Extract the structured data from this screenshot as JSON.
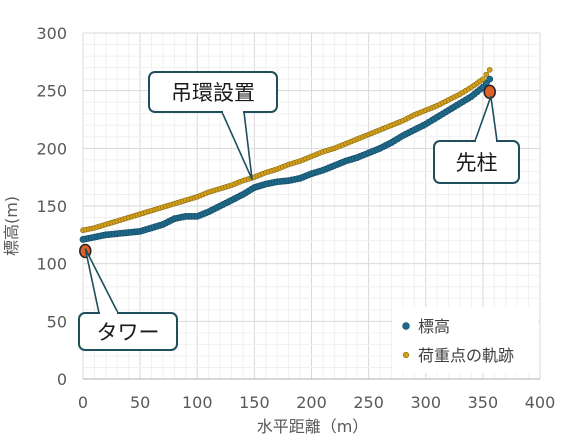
{
  "chart_data": {
    "type": "scatter",
    "xlabel": "水平距離（m）",
    "ylabel": "標高(m)",
    "xlim": [
      0,
      400
    ],
    "ylim": [
      0,
      300
    ],
    "x_ticks": [
      "0",
      "50",
      "100",
      "150",
      "200",
      "250",
      "300",
      "350",
      "400"
    ],
    "y_ticks": [
      "0",
      "50",
      "100",
      "150",
      "200",
      "250",
      "300"
    ],
    "grid": "on",
    "legend_position": "bottom-right",
    "series": [
      {
        "name": "標高",
        "color": "#1f6a8a",
        "x": [
          0,
          10,
          20,
          30,
          40,
          50,
          60,
          70,
          80,
          90,
          100,
          110,
          120,
          130,
          140,
          150,
          160,
          170,
          180,
          190,
          200,
          210,
          220,
          230,
          240,
          250,
          260,
          270,
          280,
          290,
          300,
          310,
          320,
          330,
          340,
          350,
          356
        ],
        "y": [
          121,
          123,
          125,
          126,
          127,
          128,
          131,
          134,
          139,
          141,
          141,
          145,
          150,
          155,
          160,
          166,
          169,
          171,
          172,
          174,
          178,
          181,
          185,
          189,
          192,
          196,
          200,
          205,
          211,
          216,
          221,
          227,
          233,
          239,
          245,
          253,
          260
        ]
      },
      {
        "name": "荷重点の軌跡",
        "color": "#d4a01a",
        "x": [
          0,
          10,
          20,
          30,
          40,
          50,
          60,
          70,
          80,
          90,
          100,
          110,
          120,
          130,
          140,
          150,
          160,
          170,
          180,
          190,
          200,
          210,
          220,
          230,
          240,
          250,
          260,
          270,
          280,
          290,
          300,
          310,
          320,
          330,
          340,
          350,
          356
        ],
        "y": [
          129,
          131,
          134,
          137,
          140,
          143,
          146,
          149,
          152,
          155,
          158,
          162,
          165,
          168,
          172,
          175,
          179,
          182,
          186,
          189,
          193,
          197,
          200,
          204,
          208,
          212,
          216,
          220,
          224,
          229,
          233,
          237,
          242,
          247,
          253,
          260,
          268
        ]
      }
    ],
    "markers": [
      {
        "x": 2,
        "y": 111,
        "color": "#e0602a"
      },
      {
        "x": 356,
        "y": 249,
        "color": "#e0602a"
      }
    ],
    "annotations": [
      {
        "text": "吊環設置",
        "target_x": 148,
        "target_y": 173
      },
      {
        "text": "先柱",
        "target_x": 357,
        "target_y": 245
      },
      {
        "text": "タワー",
        "target_x": 2,
        "target_y": 113
      }
    ]
  }
}
